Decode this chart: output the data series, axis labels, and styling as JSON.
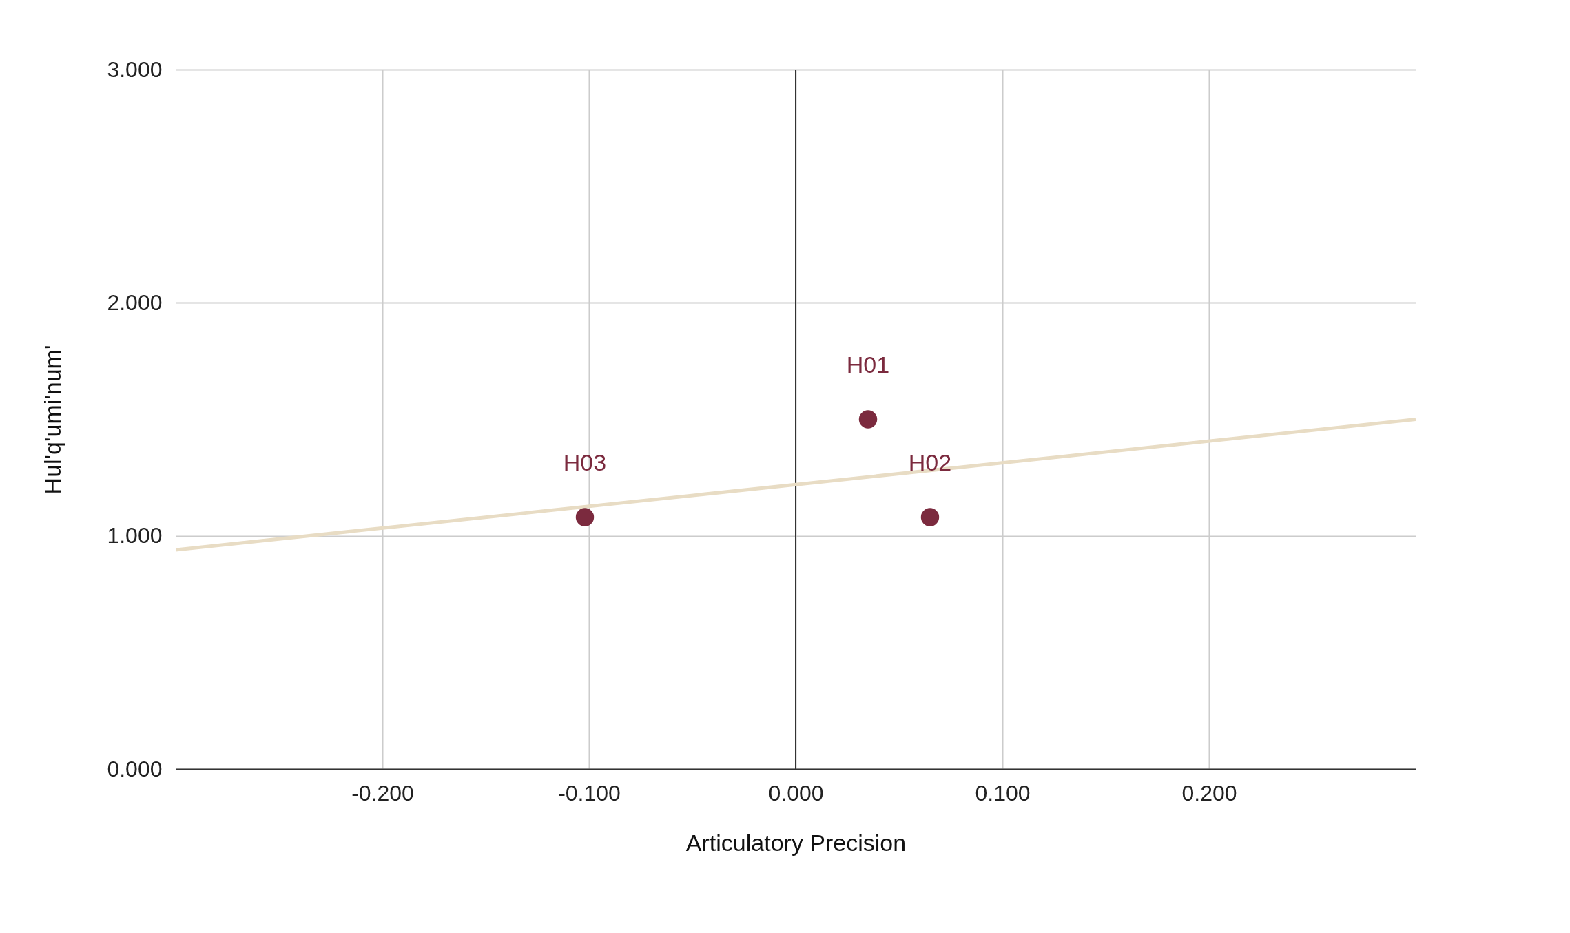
{
  "chart_data": {
    "type": "scatter",
    "xlabel": "Articulatory Precision",
    "ylabel": "Hul'q'umi'num'",
    "series": [
      {
        "color": "#7b2a3e",
        "x": [
          0.035,
          0.065,
          -0.102
        ],
        "values": [
          1.5,
          1.08,
          1.08
        ]
      },
      {
        "type": "line",
        "marker": "none",
        "color": "#e8dcc4",
        "x": [
          -0.3,
          0.3
        ],
        "values": [
          0.94,
          1.5
        ]
      }
    ],
    "annotations": [
      {
        "text": "H01",
        "x": 0.035,
        "y": 1.5
      },
      {
        "text": "H02",
        "x": 0.065,
        "y": 1.08
      },
      {
        "text": "H03",
        "x": -0.102,
        "y": 1.08
      }
    ],
    "xlim": [
      -0.3,
      0.3
    ],
    "xticks": [
      {
        "value": -0.2,
        "label": "-0.200"
      },
      {
        "value": -0.1,
        "label": "-0.100"
      },
      {
        "value": 0,
        "label": "0.000"
      },
      {
        "value": 0.1,
        "label": "0.100"
      },
      {
        "value": 0.2,
        "label": "0.200"
      }
    ],
    "ylim": [
      0,
      3
    ],
    "yticks": [
      {
        "value": 0,
        "label": "0.000"
      },
      {
        "value": 1,
        "label": "1.000"
      },
      {
        "value": 2,
        "label": "2.000"
      },
      {
        "value": 3,
        "label": "3.000"
      }
    ],
    "ref_lines": [
      {
        "axis": "x",
        "value": 0,
        "color": "#333333"
      }
    ],
    "grid": true,
    "legend": false,
    "marker": "circle"
  }
}
